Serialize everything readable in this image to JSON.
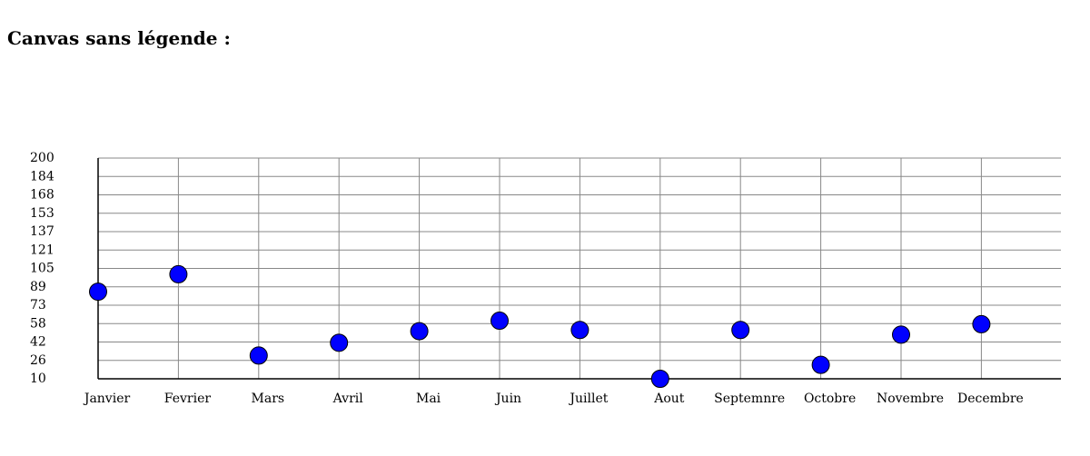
{
  "page": {
    "title": "Canvas sans légende :"
  },
  "chart_data": {
    "type": "scatter",
    "title": "",
    "xlabel": "",
    "ylabel": "",
    "categories": [
      "Janvier",
      "Fevrier",
      "Mars",
      "Avril",
      "Mai",
      "Juin",
      "Juillet",
      "Aout",
      "Septemnre",
      "Octobre",
      "Novembre",
      "Decembre"
    ],
    "series": [
      {
        "values": [
          85,
          100,
          30,
          41,
          51,
          60,
          52,
          10,
          52,
          22,
          48,
          57
        ]
      }
    ],
    "y_ticks": [
      "200",
      "184",
      "168",
      "153",
      "137",
      "121",
      "105",
      "89",
      "73",
      "58",
      "42",
      "26",
      "10"
    ],
    "ylim": [
      10,
      200
    ],
    "grid": true,
    "legend": "none",
    "colors": {
      "marker_fill": "#0000ff",
      "marker_stroke": "#000000",
      "grid": "#888888",
      "axis": "#000000"
    }
  }
}
